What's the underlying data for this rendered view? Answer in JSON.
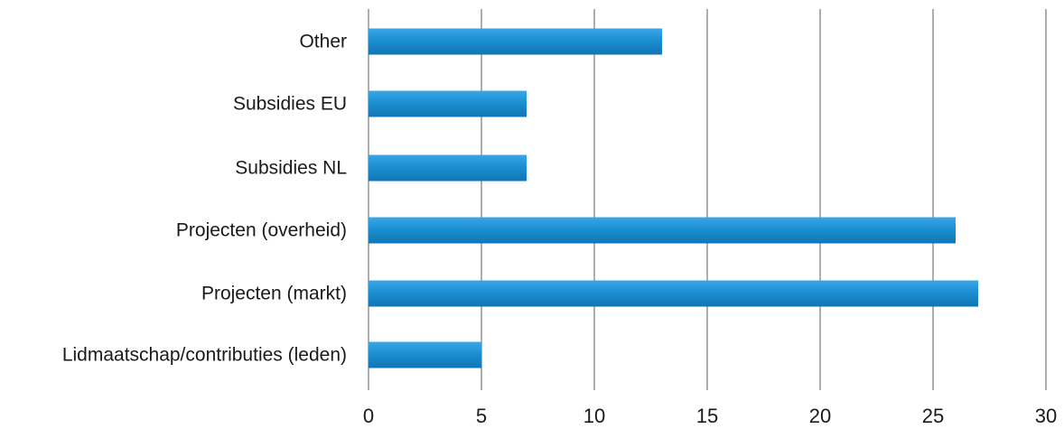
{
  "chart_data": {
    "type": "bar",
    "orientation": "horizontal",
    "title": "",
    "xlabel": "",
    "ylabel": "",
    "categories": [
      "Other",
      "Subsidies EU",
      "Subsidies NL",
      "Projecten (overheid)",
      "Projecten (markt)",
      "Lidmaatschap/contributies (leden)"
    ],
    "values": [
      13,
      7,
      7,
      26,
      27,
      5
    ],
    "xlim": [
      0,
      30
    ],
    "xticks": [
      0,
      5,
      10,
      15,
      20,
      25,
      30
    ],
    "tick_labels": [
      "0",
      "5",
      "10",
      "15",
      "20",
      "25",
      "30"
    ],
    "grid": true,
    "legend": "none",
    "colors": {
      "bar": "#1b8fd2",
      "bar_dark": "#1275b3",
      "bar_light": "#3aa6e6",
      "grid": "#8c8c8c",
      "text": "#1a1a1a"
    }
  }
}
